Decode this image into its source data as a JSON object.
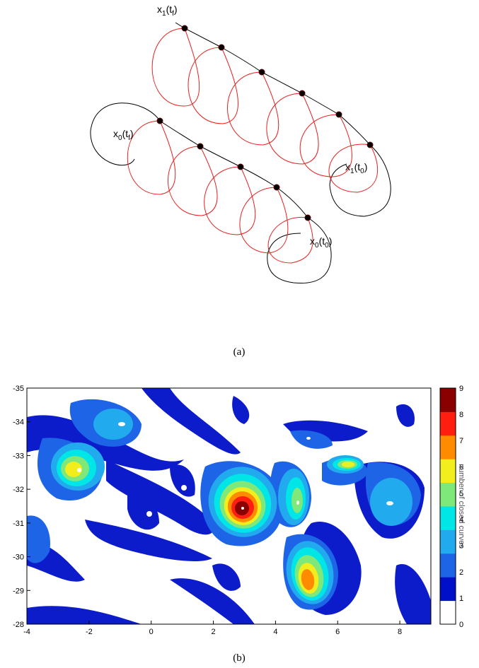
{
  "panel_a": {
    "caption": "(a)",
    "labels": {
      "x1_tf": {
        "base": "x",
        "sub": "1",
        "open": "(t",
        "sub2": "f",
        "close": ")"
      },
      "x0_tf": {
        "base": "x",
        "sub": "0",
        "open": "(t",
        "sub2": "f",
        "close": ")"
      },
      "x1_t0": {
        "base": "x",
        "sub": "1",
        "open": "(t",
        "sub2": "0",
        "close": ")"
      },
      "x0_t0": {
        "base": "x",
        "sub": "0",
        "open": "(t",
        "sub2": "0",
        "close": ")"
      }
    },
    "colors": {
      "trajectory": "#000000",
      "loops": "#e8201e",
      "points": "#000000"
    }
  },
  "panel_b": {
    "caption": "(b)",
    "chart_data": {
      "type": "heatmap",
      "xlim": [
        -4,
        9
      ],
      "ylim": [
        -35,
        -28
      ],
      "x_ticks": [
        "-4",
        "-2",
        "0",
        "2",
        "4",
        "6",
        "8"
      ],
      "y_ticks": [
        "-35",
        "-34",
        "-33",
        "-32",
        "-31",
        "-30",
        "-29",
        "-28"
      ],
      "colorbar": {
        "label": "number of closed curves",
        "ticks": [
          "0",
          "1",
          "2",
          "3",
          "4",
          "5",
          "6",
          "7",
          "8",
          "9"
        ],
        "colors": [
          "#ffffff",
          "#0010c8",
          "#1e64e6",
          "#22aaee",
          "#00e6e6",
          "#7ee87a",
          "#f2ee1e",
          "#ff8c00",
          "#ff1e10",
          "#8a0000"
        ]
      }
    }
  }
}
